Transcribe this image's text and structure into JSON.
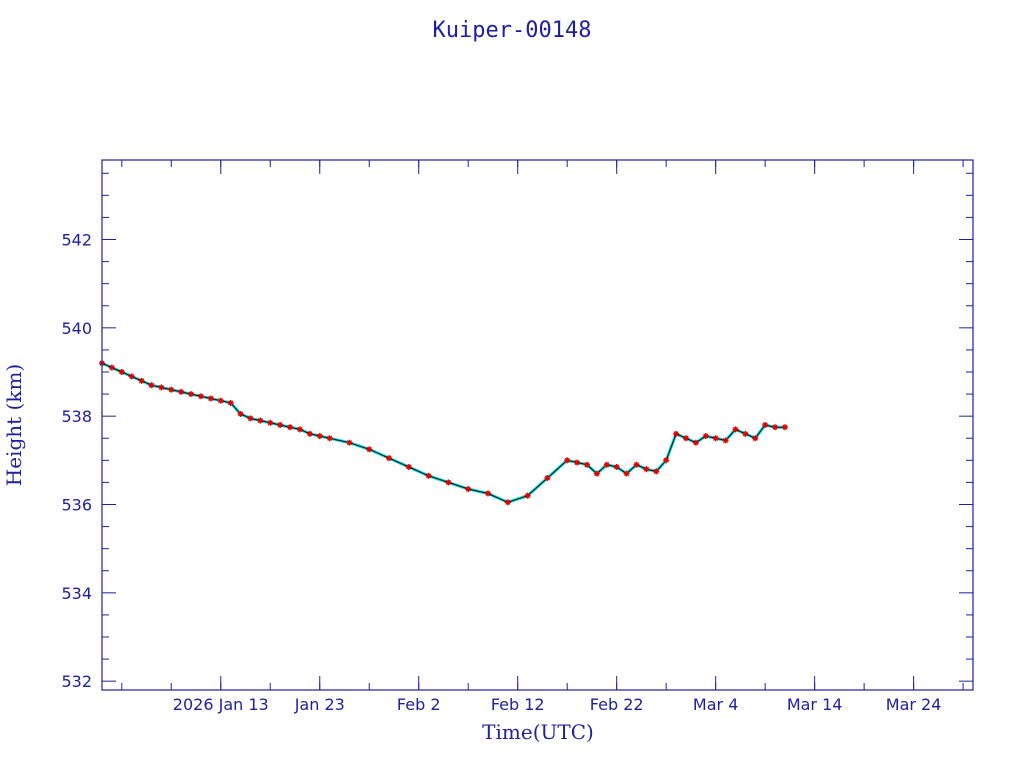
{
  "chart_data": {
    "type": "line",
    "title": "Kuiper-00148",
    "xlabel": "Time(UTC)",
    "ylabel": "Height (km)",
    "xlim": [
      "2026-01-01",
      "2026-03-30"
    ],
    "ylim": [
      531.8,
      543.8
    ],
    "x_ticks": [
      {
        "date": "2026-01-13",
        "label": "2026 Jan 13"
      },
      {
        "date": "2026-01-23",
        "label": "Jan 23"
      },
      {
        "date": "2026-02-02",
        "label": "Feb  2"
      },
      {
        "date": "2026-02-12",
        "label": "Feb 12"
      },
      {
        "date": "2026-02-22",
        "label": "Feb 22"
      },
      {
        "date": "2026-03-04",
        "label": "Mar  4"
      },
      {
        "date": "2026-03-14",
        "label": "Mar 14"
      },
      {
        "date": "2026-03-24",
        "label": "Mar 24"
      }
    ],
    "y_ticks": [
      532,
      534,
      536,
      538,
      540,
      542
    ],
    "grid": false,
    "colors": {
      "frame": "#1f1f9e",
      "line": "#000000",
      "marker": "#e00000",
      "fit": "#00e5e5"
    },
    "series": [
      {
        "marker": "asterisk",
        "x": [
          "2026-01-01",
          "2026-01-02",
          "2026-01-03",
          "2026-01-04",
          "2026-01-05",
          "2026-01-06",
          "2026-01-07",
          "2026-01-08",
          "2026-01-09",
          "2026-01-10",
          "2026-01-11",
          "2026-01-12",
          "2026-01-13",
          "2026-01-14",
          "2026-01-15",
          "2026-01-16",
          "2026-01-17",
          "2026-01-18",
          "2026-01-19",
          "2026-01-20",
          "2026-01-21",
          "2026-01-22",
          "2026-01-23",
          "2026-01-24",
          "2026-01-26",
          "2026-01-28",
          "2026-01-30",
          "2026-02-01",
          "2026-02-03",
          "2026-02-05",
          "2026-02-07",
          "2026-02-09",
          "2026-02-11",
          "2026-02-13",
          "2026-02-15",
          "2026-02-17",
          "2026-02-18",
          "2026-02-19",
          "2026-02-20",
          "2026-02-21",
          "2026-02-22",
          "2026-02-23",
          "2026-02-24",
          "2026-02-25",
          "2026-02-26",
          "2026-02-27",
          "2026-02-28",
          "2026-03-01",
          "2026-03-02",
          "2026-03-03",
          "2026-03-04",
          "2026-03-05",
          "2026-03-06",
          "2026-03-07",
          "2026-03-08",
          "2026-03-09",
          "2026-03-10",
          "2026-03-11"
        ],
        "y": [
          539.2,
          539.1,
          539.0,
          538.9,
          538.8,
          538.7,
          538.65,
          538.6,
          538.55,
          538.5,
          538.45,
          538.4,
          538.35,
          538.3,
          538.05,
          537.95,
          537.9,
          537.85,
          537.8,
          537.75,
          537.7,
          537.6,
          537.55,
          537.5,
          537.4,
          537.25,
          537.05,
          536.85,
          536.65,
          536.5,
          536.35,
          536.25,
          536.05,
          536.2,
          536.6,
          537.0,
          536.95,
          536.9,
          536.7,
          536.9,
          536.85,
          536.7,
          536.9,
          536.8,
          536.75,
          537.0,
          537.6,
          537.5,
          537.4,
          537.55,
          537.5,
          537.45,
          537.7,
          537.6,
          537.5,
          537.8,
          537.75,
          537.75
        ]
      }
    ]
  }
}
